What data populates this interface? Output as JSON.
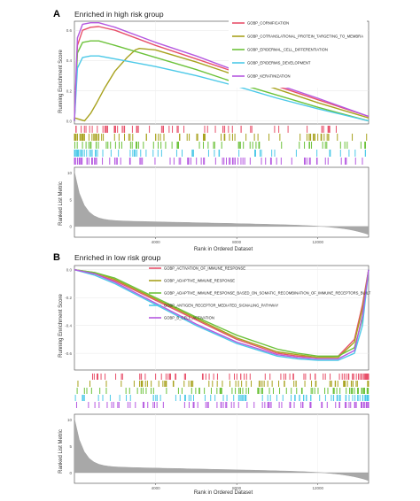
{
  "chart_data": [
    {
      "type": "line",
      "panel_letter": "A",
      "title": "Enriched in high risk group",
      "ylabel_top": "Running Enrichment Score",
      "ylabel_bottom": "Ranked List Metric",
      "xlabel": "Rank in Ordered Dataset",
      "x_ticks": [
        "4000",
        "8000",
        "12000"
      ],
      "x_tick_values": [
        4000,
        8000,
        12000
      ],
      "xlim": [
        0,
        14500
      ],
      "y_ticks": [
        "0.6",
        "0.4",
        "0.2",
        "0.0"
      ],
      "y_tick_values": [
        0.6,
        0.4,
        0.2,
        0.0
      ],
      "ylim": [
        -0.02,
        0.66
      ],
      "metric_ticks": [
        "10",
        "5",
        "0"
      ],
      "metric_tick_values": [
        10,
        5,
        0
      ],
      "metric_ylim": [
        -2,
        11
      ],
      "legend_position": "top-right",
      "series": [
        {
          "name": "GOBP_CORNIFICATION",
          "color": "#e8506a",
          "x": [
            0,
            150,
            400,
            800,
            1200,
            2000,
            4000,
            6000,
            8000,
            10000,
            12000,
            14500
          ],
          "y": [
            0.0,
            0.5,
            0.6,
            0.62,
            0.625,
            0.6,
            0.5,
            0.41,
            0.32,
            0.23,
            0.14,
            0.03
          ]
        },
        {
          "name": "GOBP_COTRANSLATIONAL_PROTEIN_TARGETING_TO_MEMBRA",
          "color": "#a8a21e",
          "x": [
            0,
            500,
            800,
            1100,
            1500,
            2000,
            2600,
            3000,
            3200,
            4000,
            6000,
            8000,
            10000,
            12000,
            14500
          ],
          "y": [
            0.02,
            0.0,
            0.05,
            0.12,
            0.22,
            0.33,
            0.42,
            0.47,
            0.48,
            0.47,
            0.39,
            0.3,
            0.21,
            0.12,
            0.02
          ]
        },
        {
          "name": "GOBP_EPIDERMAL_CELL_DIFFERENTIATION",
          "color": "#6cc23a",
          "x": [
            0,
            150,
            400,
            800,
            1200,
            2000,
            4000,
            6000,
            8000,
            10000,
            12000,
            14500
          ],
          "y": [
            0.0,
            0.45,
            0.52,
            0.53,
            0.53,
            0.5,
            0.42,
            0.34,
            0.25,
            0.17,
            0.09,
            0.0
          ]
        },
        {
          "name": "GOBP_EPIDERMIS_DEVELOPMENT",
          "color": "#4cc9e8",
          "x": [
            0,
            150,
            400,
            800,
            1200,
            2000,
            4000,
            6000,
            8000,
            10000,
            12000,
            14500
          ],
          "y": [
            0.0,
            0.35,
            0.42,
            0.43,
            0.43,
            0.41,
            0.36,
            0.3,
            0.23,
            0.15,
            0.08,
            0.0
          ]
        },
        {
          "name": "GOBP_KERATINIZATION",
          "color": "#b558e0",
          "x": [
            0,
            150,
            400,
            800,
            1200,
            2000,
            4000,
            6000,
            8000,
            10000,
            12000,
            14500
          ],
          "y": [
            0.0,
            0.55,
            0.64,
            0.65,
            0.65,
            0.62,
            0.52,
            0.43,
            0.33,
            0.24,
            0.15,
            0.03
          ]
        }
      ]
    },
    {
      "type": "line",
      "panel_letter": "B",
      "title": "Enriched in low risk group",
      "ylabel_top": "Running Enrichment Score",
      "ylabel_bottom": "Ranked List Metric",
      "xlabel": "Rank in Ordered Dataset",
      "x_ticks": [
        "4000",
        "8000",
        "12000"
      ],
      "x_tick_values": [
        4000,
        8000,
        12000
      ],
      "xlim": [
        0,
        14500
      ],
      "y_ticks": [
        "0.0",
        "-0.2",
        "-0.4",
        "-0.6"
      ],
      "y_tick_values": [
        0.0,
        -0.2,
        -0.4,
        -0.6
      ],
      "ylim": [
        -0.72,
        0.03
      ],
      "metric_ticks": [
        "10",
        "5",
        "0"
      ],
      "metric_tick_values": [
        10,
        5,
        0
      ],
      "metric_ylim": [
        -2,
        11
      ],
      "legend_position": "top-right",
      "series": [
        {
          "name": "GOBP_ACTIVATION_OF_IMMUNE_RESPONSE",
          "color": "#e8506a",
          "x": [
            0,
            1000,
            2000,
            4000,
            6000,
            8000,
            10000,
            11000,
            12000,
            13000,
            13800,
            14200,
            14500
          ],
          "y": [
            0.0,
            -0.03,
            -0.08,
            -0.22,
            -0.36,
            -0.5,
            -0.6,
            -0.62,
            -0.63,
            -0.62,
            -0.5,
            -0.25,
            0.0
          ]
        },
        {
          "name": "GOBP_ADAPTIVE_IMMUNE_RESPONSE",
          "color": "#a8a21e",
          "x": [
            0,
            1000,
            2000,
            4000,
            6000,
            8000,
            10000,
            11000,
            12000,
            13000,
            13800,
            14200,
            14500
          ],
          "y": [
            0.0,
            -0.02,
            -0.07,
            -0.21,
            -0.35,
            -0.49,
            -0.59,
            -0.61,
            -0.63,
            -0.63,
            -0.52,
            -0.28,
            0.0
          ]
        },
        {
          "name": "GOBP_ADAPTIVE_IMMUNE_RESPONSE_BASED_ON_SOMATIC_RECOMBINATION_OF_IMMUNE_RECEPTORS_BUILT",
          "color": "#6cc23a",
          "x": [
            0,
            1000,
            2000,
            4000,
            6000,
            8000,
            10000,
            11000,
            12000,
            13000,
            13800,
            14200,
            14500
          ],
          "y": [
            0.0,
            -0.02,
            -0.06,
            -0.2,
            -0.34,
            -0.47,
            -0.57,
            -0.6,
            -0.62,
            -0.62,
            -0.56,
            -0.35,
            0.0
          ]
        },
        {
          "name": "GOBP_ANTIGEN_RECEPTOR_MEDIATED_SIGNALING_PATHWAY",
          "color": "#4cc9e8",
          "x": [
            0,
            1000,
            2000,
            4000,
            6000,
            8000,
            10000,
            11000,
            12000,
            13000,
            13800,
            14200,
            14500
          ],
          "y": [
            0.0,
            -0.04,
            -0.1,
            -0.25,
            -0.4,
            -0.53,
            -0.62,
            -0.64,
            -0.65,
            -0.65,
            -0.6,
            -0.4,
            0.0
          ]
        },
        {
          "name": "GOBP_B_CELL_ACTIVATION",
          "color": "#b558e0",
          "x": [
            0,
            1000,
            2000,
            4000,
            6000,
            8000,
            10000,
            11000,
            12000,
            13000,
            13800,
            14200,
            14500
          ],
          "y": [
            0.0,
            -0.03,
            -0.09,
            -0.24,
            -0.39,
            -0.52,
            -0.61,
            -0.63,
            -0.64,
            -0.64,
            -0.58,
            -0.33,
            0.0
          ]
        }
      ]
    }
  ]
}
